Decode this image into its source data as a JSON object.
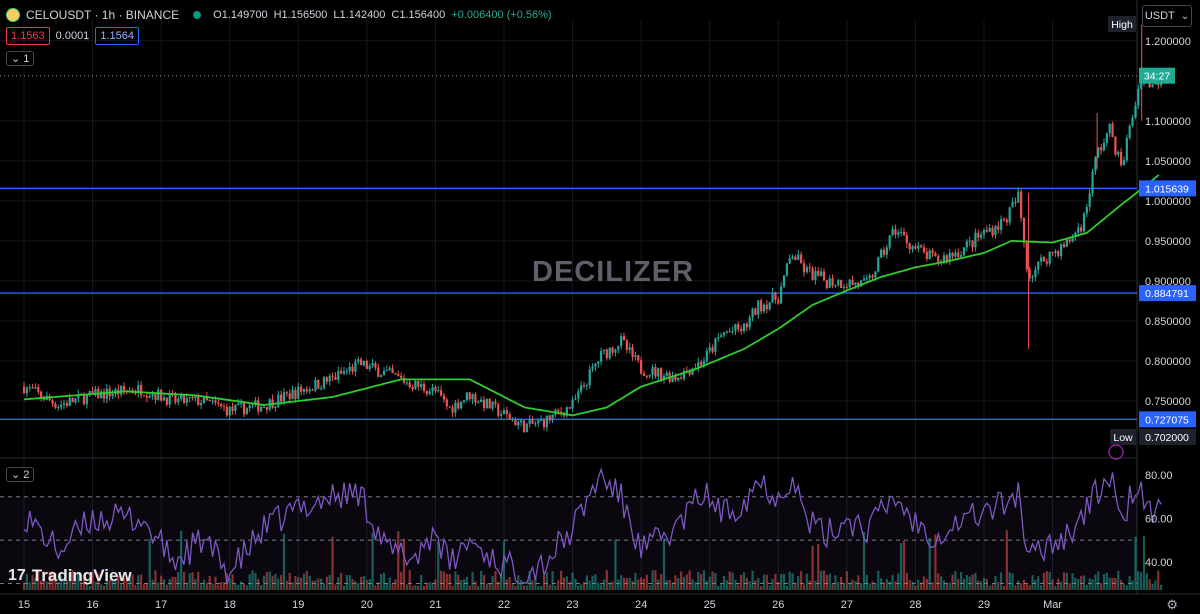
{
  "header": {
    "symbol": "CELOUSDT · 1h · BINANCE",
    "open": "O1.149700",
    "high": "H1.156500",
    "low": "L1.142400",
    "close": "C1.156400",
    "change": "+0.006400 (+0.56%)",
    "bid": "1.1563",
    "spread": "0.0001",
    "ask": "1.1564",
    "pane1_tag": "1",
    "pane2_tag": "2",
    "currency": "USDT"
  },
  "watermark": "DECILIZER",
  "brand": "TradingView",
  "colors": {
    "up": "#26a69a",
    "down": "#ef5350",
    "ma": "#2ecc2e",
    "level": "#2962ff",
    "rsi": "#7e57c2",
    "accent": "#22ab94"
  },
  "chart_data": [
    {
      "type": "candlestick",
      "title": "CELOUSDT · 1h · BINANCE",
      "x_tick_labels": [
        "15",
        "16",
        "17",
        "18",
        "19",
        "20",
        "21",
        "22",
        "23",
        "24",
        "25",
        "26",
        "27",
        "28",
        "29",
        "Mar"
      ],
      "y_ticks": [
        "1.200000",
        "1.100000",
        "1.050000",
        "1.000000",
        "0.950000",
        "0.900000",
        "0.850000",
        "0.800000",
        "0.750000"
      ],
      "ylim": [
        0.695,
        1.226
      ],
      "current_price": 1.1564,
      "countdown": "34:27",
      "high_tag": "High",
      "low_tag": "Low",
      "low_value": "0.702000",
      "horizontal_levels": [
        {
          "value": 1.015639,
          "label": "1.015639"
        },
        {
          "value": 0.884791,
          "label": "0.884791"
        },
        {
          "value": 0.727075,
          "label": "0.727075"
        }
      ],
      "price_anchors": [
        {
          "day": 0,
          "price": 0.768
        },
        {
          "day": 0.5,
          "price": 0.745
        },
        {
          "day": 1.0,
          "price": 0.757
        },
        {
          "day": 1.7,
          "price": 0.765
        },
        {
          "day": 2.2,
          "price": 0.75
        },
        {
          "day": 2.6,
          "price": 0.75
        },
        {
          "day": 3.0,
          "price": 0.738
        },
        {
          "day": 3.5,
          "price": 0.745
        },
        {
          "day": 4.0,
          "price": 0.762
        },
        {
          "day": 4.5,
          "price": 0.778
        },
        {
          "day": 4.9,
          "price": 0.796
        },
        {
          "day": 5.3,
          "price": 0.784
        },
        {
          "day": 5.7,
          "price": 0.77
        },
        {
          "day": 6.0,
          "price": 0.762
        },
        {
          "day": 6.2,
          "price": 0.74
        },
        {
          "day": 6.5,
          "price": 0.758
        },
        {
          "day": 6.9,
          "price": 0.738
        },
        {
          "day": 7.3,
          "price": 0.718
        },
        {
          "day": 7.6,
          "price": 0.725
        },
        {
          "day": 8.0,
          "price": 0.745
        },
        {
          "day": 8.4,
          "price": 0.805
        },
        {
          "day": 8.7,
          "price": 0.825
        },
        {
          "day": 9.0,
          "price": 0.79
        },
        {
          "day": 9.5,
          "price": 0.78
        },
        {
          "day": 9.9,
          "price": 0.8
        },
        {
          "day": 10.2,
          "price": 0.835
        },
        {
          "day": 10.5,
          "price": 0.84
        },
        {
          "day": 10.7,
          "price": 0.868
        },
        {
          "day": 11.0,
          "price": 0.88
        },
        {
          "day": 11.2,
          "price": 0.935
        },
        {
          "day": 11.4,
          "price": 0.912
        },
        {
          "day": 11.7,
          "price": 0.9
        },
        {
          "day": 12.0,
          "price": 0.898
        },
        {
          "day": 12.3,
          "price": 0.895
        },
        {
          "day": 12.7,
          "price": 0.965
        },
        {
          "day": 13.0,
          "price": 0.94
        },
        {
          "day": 13.3,
          "price": 0.925
        },
        {
          "day": 13.7,
          "price": 0.94
        },
        {
          "day": 14.0,
          "price": 0.96
        },
        {
          "day": 14.3,
          "price": 0.975
        },
        {
          "day": 14.5,
          "price": 1.005
        },
        {
          "day": 14.65,
          "price": 0.905
        },
        {
          "day": 14.9,
          "price": 0.93
        },
        {
          "day": 15.2,
          "price": 0.945
        },
        {
          "day": 15.45,
          "price": 0.975
        },
        {
          "day": 15.65,
          "price": 1.06
        },
        {
          "day": 15.85,
          "price": 1.09
        },
        {
          "day": 16.0,
          "price": 1.04
        },
        {
          "day": 16.15,
          "price": 1.1
        },
        {
          "day": 16.3,
          "price": 1.16
        },
        {
          "day": 16.45,
          "price": 1.145
        },
        {
          "day": 16.6,
          "price": 1.156
        }
      ],
      "ma_anchors": [
        {
          "day": 0,
          "price": 0.752
        },
        {
          "day": 1.5,
          "price": 0.762
        },
        {
          "day": 2.5,
          "price": 0.757
        },
        {
          "day": 3.5,
          "price": 0.745
        },
        {
          "day": 4.5,
          "price": 0.755
        },
        {
          "day": 5.5,
          "price": 0.777
        },
        {
          "day": 6.5,
          "price": 0.777
        },
        {
          "day": 7.3,
          "price": 0.742
        },
        {
          "day": 8.0,
          "price": 0.732
        },
        {
          "day": 8.5,
          "price": 0.742
        },
        {
          "day": 9.0,
          "price": 0.768
        },
        {
          "day": 9.8,
          "price": 0.79
        },
        {
          "day": 10.5,
          "price": 0.815
        },
        {
          "day": 11.0,
          "price": 0.84
        },
        {
          "day": 11.5,
          "price": 0.87
        },
        {
          "day": 12.0,
          "price": 0.888
        },
        {
          "day": 12.5,
          "price": 0.905
        },
        {
          "day": 13.0,
          "price": 0.917
        },
        {
          "day": 13.5,
          "price": 0.925
        },
        {
          "day": 14.0,
          "price": 0.935
        },
        {
          "day": 14.4,
          "price": 0.95
        },
        {
          "day": 15.0,
          "price": 0.948
        },
        {
          "day": 15.5,
          "price": 0.96
        },
        {
          "day": 16.0,
          "price": 0.995
        },
        {
          "day": 16.3,
          "price": 1.015
        },
        {
          "day": 16.6,
          "price": 1.036
        }
      ],
      "grid": true
    },
    {
      "type": "line",
      "title": "",
      "y_ticks": [
        "80.00",
        "60.00",
        "40.00"
      ],
      "ylim": [
        27,
        86
      ],
      "bands": [
        70,
        50,
        30
      ],
      "rsi_anchors": [
        {
          "day": 0,
          "price": 62
        },
        {
          "day": 0.5,
          "price": 45
        },
        {
          "day": 1.0,
          "price": 60
        },
        {
          "day": 1.7,
          "price": 60
        },
        {
          "day": 2.2,
          "price": 40
        },
        {
          "day": 2.6,
          "price": 50
        },
        {
          "day": 3.0,
          "price": 35
        },
        {
          "day": 3.5,
          "price": 55
        },
        {
          "day": 4.0,
          "price": 65
        },
        {
          "day": 4.5,
          "price": 70
        },
        {
          "day": 4.9,
          "price": 72
        },
        {
          "day": 5.3,
          "price": 45
        },
        {
          "day": 5.7,
          "price": 42
        },
        {
          "day": 6.0,
          "price": 55
        },
        {
          "day": 6.2,
          "price": 38
        },
        {
          "day": 6.5,
          "price": 50
        },
        {
          "day": 6.9,
          "price": 40
        },
        {
          "day": 7.3,
          "price": 35
        },
        {
          "day": 7.6,
          "price": 40
        },
        {
          "day": 8.0,
          "price": 55
        },
        {
          "day": 8.4,
          "price": 80
        },
        {
          "day": 8.7,
          "price": 70
        },
        {
          "day": 9.0,
          "price": 45
        },
        {
          "day": 9.5,
          "price": 55
        },
        {
          "day": 9.9,
          "price": 72
        },
        {
          "day": 10.2,
          "price": 62
        },
        {
          "day": 10.5,
          "price": 68
        },
        {
          "day": 10.7,
          "price": 78
        },
        {
          "day": 11.0,
          "price": 70
        },
        {
          "day": 11.2,
          "price": 80
        },
        {
          "day": 11.4,
          "price": 60
        },
        {
          "day": 11.7,
          "price": 52
        },
        {
          "day": 12.0,
          "price": 60
        },
        {
          "day": 12.3,
          "price": 55
        },
        {
          "day": 12.7,
          "price": 70
        },
        {
          "day": 13.0,
          "price": 58
        },
        {
          "day": 13.3,
          "price": 52
        },
        {
          "day": 13.7,
          "price": 60
        },
        {
          "day": 14.0,
          "price": 63
        },
        {
          "day": 14.3,
          "price": 67
        },
        {
          "day": 14.5,
          "price": 72
        },
        {
          "day": 14.65,
          "price": 40
        },
        {
          "day": 14.9,
          "price": 48
        },
        {
          "day": 15.2,
          "price": 52
        },
        {
          "day": 15.45,
          "price": 62
        },
        {
          "day": 15.65,
          "price": 72
        },
        {
          "day": 15.85,
          "price": 80
        },
        {
          "day": 16.0,
          "price": 56
        },
        {
          "day": 16.15,
          "price": 72
        },
        {
          "day": 16.3,
          "price": 71
        },
        {
          "day": 16.45,
          "price": 60
        },
        {
          "day": 16.6,
          "price": 66
        }
      ]
    }
  ]
}
